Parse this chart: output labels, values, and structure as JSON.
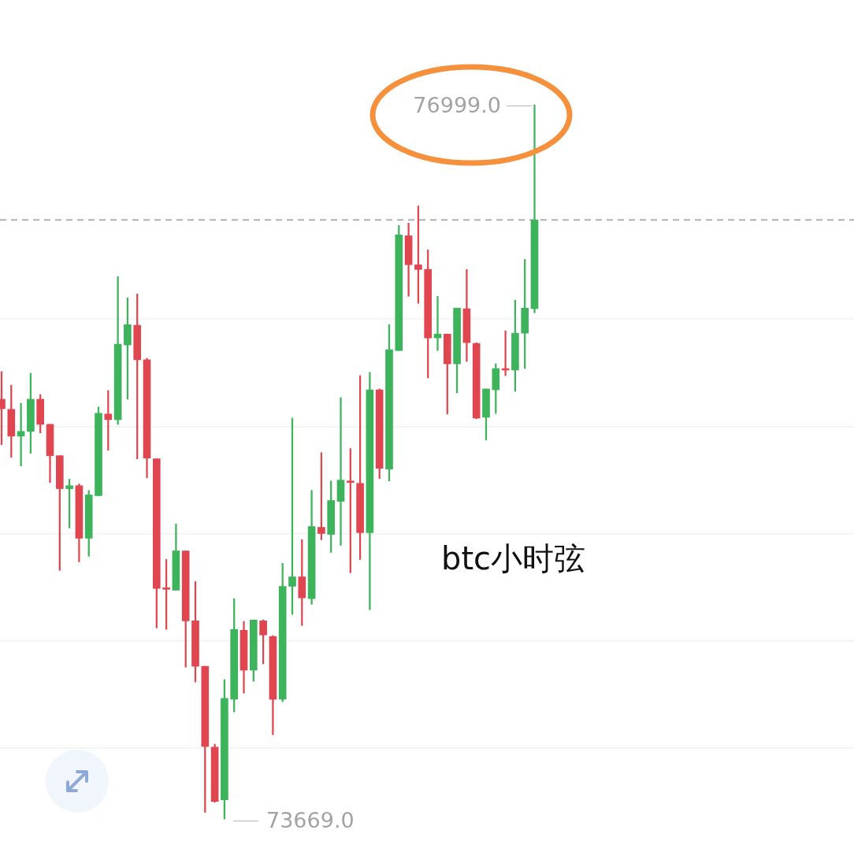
{
  "chart_data": {
    "type": "candlestick",
    "categories": [
      null,
      null,
      null,
      null,
      null,
      null,
      null,
      null,
      null,
      null,
      null,
      null,
      null,
      null,
      null,
      null,
      null,
      null,
      null,
      null,
      null,
      null,
      null,
      null,
      null,
      null,
      null,
      null,
      null,
      null,
      null,
      null,
      null,
      null,
      null,
      null,
      null,
      null,
      null,
      null,
      null,
      null,
      null,
      null,
      null,
      null,
      null,
      null,
      null,
      null,
      null,
      null,
      null,
      null,
      null,
      null
    ],
    "ohlc": [
      [
        75626,
        75755,
        75414,
        75582
      ],
      [
        75579,
        75692,
        75355,
        75454
      ],
      [
        75454,
        75608,
        75315,
        75476
      ],
      [
        75476,
        75747,
        75374,
        75626
      ],
      [
        75626,
        75648,
        75469,
        75509
      ],
      [
        75509,
        75509,
        75238,
        75363
      ],
      [
        75363,
        75363,
        74828,
        75209
      ],
      [
        75209,
        75253,
        75026,
        75223
      ],
      [
        75223,
        75231,
        74868,
        74978
      ],
      [
        74978,
        75201,
        74894,
        75180
      ],
      [
        75176,
        75590,
        75176,
        75560
      ],
      [
        75557,
        75667,
        75388,
        75531
      ],
      [
        75531,
        76198,
        75509,
        75883
      ],
      [
        75879,
        76099,
        75626,
        75974
      ],
      [
        75971,
        76117,
        75348,
        75810
      ],
      [
        75810,
        75817,
        75260,
        75352
      ],
      [
        75348,
        75348,
        74560,
        74744
      ],
      [
        74747,
        74879,
        74553,
        74740
      ],
      [
        74736,
        75044,
        74736,
        74919
      ],
      [
        74919,
        74919,
        74377,
        74593
      ],
      [
        74593,
        74776,
        74308,
        74381
      ],
      [
        74381,
        74381,
        73700,
        74007
      ],
      [
        74004,
        74018,
        73747,
        73751
      ],
      [
        73758,
        74319,
        73669,
        74231
      ],
      [
        74227,
        74696,
        74168,
        74553
      ],
      [
        74549,
        74590,
        74256,
        74363
      ],
      [
        74363,
        74597,
        74311,
        74597
      ],
      [
        74593,
        74597,
        74392,
        74527
      ],
      [
        74520,
        74524,
        74062,
        74227
      ],
      [
        74227,
        74861,
        74216,
        74754
      ],
      [
        74754,
        75538,
        74623,
        74798
      ],
      [
        74798,
        74971,
        74571,
        74700
      ],
      [
        74696,
        75201,
        74670,
        75033
      ],
      [
        75029,
        75377,
        74971,
        75000
      ],
      [
        74996,
        75245,
        74912,
        75154
      ],
      [
        75150,
        75634,
        74945,
        75249
      ],
      [
        75245,
        75396,
        74817,
        75238
      ],
      [
        75234,
        75736,
        74879,
        75004
      ],
      [
        75004,
        75751,
        74645,
        75670
      ],
      [
        75670,
        75674,
        75256,
        75304
      ],
      [
        75300,
        75974,
        75245,
        75857
      ],
      [
        75853,
        76436,
        75853,
        76392
      ],
      [
        76388,
        76447,
        76106,
        76253
      ],
      [
        76253,
        76527,
        76073,
        76231
      ],
      [
        76231,
        76322,
        75725,
        75912
      ],
      [
        75912,
        76106,
        75853,
        75930
      ],
      [
        75930,
        75930,
        75557,
        75791
      ],
      [
        75791,
        76051,
        75656,
        76051
      ],
      [
        76048,
        76231,
        75802,
        75890
      ],
      [
        75886,
        75890,
        75535,
        75538
      ],
      [
        75542,
        75674,
        75436,
        75674
      ],
      [
        75670,
        75791,
        75560,
        75769
      ],
      [
        75769,
        75945,
        75736,
        75762
      ],
      [
        75762,
        76088,
        75663,
        75934
      ],
      [
        75934,
        76278,
        75769,
        76051
      ],
      [
        76048,
        76999,
        76029,
        76462
      ]
    ],
    "colors": [
      "#e0464f",
      "#e0464f",
      "#3db35b",
      "#3db35b",
      "#e0464f",
      "#e0464f",
      "#e0464f",
      "#3db35b",
      "#e0464f",
      "#3db35b",
      "#3db35b",
      "#e0464f",
      "#3db35b",
      "#3db35b",
      "#e0464f",
      "#e0464f",
      "#e0464f",
      "#e0464f",
      "#3db35b",
      "#e0464f",
      "#e0464f",
      "#e0464f",
      "#e0464f",
      "#3db35b",
      "#3db35b",
      "#e0464f",
      "#3db35b",
      "#e0464f",
      "#e0464f",
      "#3db35b",
      "#3db35b",
      "#e0464f",
      "#3db35b",
      "#e0464f",
      "#3db35b",
      "#3db35b",
      "#e0464f",
      "#e0464f",
      "#3db35b",
      "#e0464f",
      "#3db35b",
      "#3db35b",
      "#e0464f",
      "#e0464f",
      "#e0464f",
      "#3db35b",
      "#e0464f",
      "#3db35b",
      "#e0464f",
      "#e0464f",
      "#3db35b",
      "#3db35b",
      "#e0464f",
      "#3db35b",
      "#3db35b",
      "#3db35b"
    ],
    "grid": "y",
    "yticks": [
      {
        "value": 74000,
        "label": null
      },
      {
        "value": 74500,
        "label": null
      },
      {
        "value": 75000,
        "label": null
      },
      {
        "value": 75500,
        "label": null
      },
      {
        "value": 76000,
        "label": null
      }
    ],
    "tick_labels": false,
    "ref_lines": [
      {
        "axis": "y",
        "value": 76462,
        "label": null,
        "color": "#b0b0b0",
        "line_style": "dashed"
      }
    ],
    "annotations": [
      "76999.0",
      "73669.0",
      "btc小时弦"
    ]
  }
}
